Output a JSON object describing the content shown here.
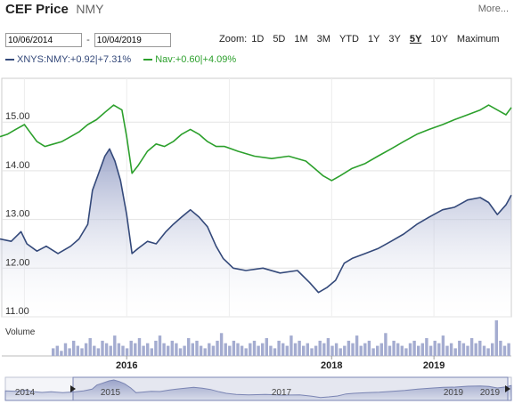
{
  "header": {
    "title": "CEF Price",
    "ticker": "NMY",
    "more_link": "More..."
  },
  "date_range": {
    "from": "10/06/2014",
    "to": "10/04/2019"
  },
  "zoom": {
    "label": "Zoom:",
    "options": [
      "1D",
      "5D",
      "1M",
      "3M",
      "YTD",
      "1Y",
      "3Y",
      "5Y",
      "10Y",
      "Maximum"
    ],
    "active": "5Y"
  },
  "legend": [
    {
      "text": "XNYS:NMY:+0.92|+7.31%",
      "color": "#34497a"
    },
    {
      "text": "Nav:+0.60|+4.09%",
      "color": "#2ca02c"
    }
  ],
  "chart_data": {
    "type": "line",
    "ylim": [
      11.0,
      15.9
    ],
    "y_ticks": [
      "11.00",
      "12.00",
      "13.00",
      "14.00",
      "15.00"
    ],
    "x_range": [
      "2014-10-06",
      "2019-10-04"
    ],
    "x_ticks": [
      "2016",
      "2018",
      "2019"
    ],
    "volume_label": "Volume",
    "navigator_ticks": [
      "2014",
      "2015",
      "2017",
      "2019",
      "2019"
    ],
    "series": [
      {
        "name": "XNYS:NMY",
        "color": "#34497a",
        "points": [
          [
            "2014-10-06",
            12.6
          ],
          [
            "2014-11-15",
            12.55
          ],
          [
            "2014-12-20",
            12.75
          ],
          [
            "2015-01-10",
            12.5
          ],
          [
            "2015-02-15",
            12.35
          ],
          [
            "2015-03-20",
            12.45
          ],
          [
            "2015-05-01",
            12.3
          ],
          [
            "2015-06-15",
            12.45
          ],
          [
            "2015-07-15",
            12.6
          ],
          [
            "2015-08-15",
            12.9
          ],
          [
            "2015-09-01",
            13.6
          ],
          [
            "2015-09-20",
            13.9
          ],
          [
            "2015-10-15",
            14.3
          ],
          [
            "2015-11-01",
            14.45
          ],
          [
            "2015-11-20",
            14.2
          ],
          [
            "2015-12-10",
            13.8
          ],
          [
            "2016-01-01",
            13.1
          ],
          [
            "2016-01-20",
            12.3
          ],
          [
            "2016-02-10",
            12.4
          ],
          [
            "2016-03-15",
            12.55
          ],
          [
            "2016-04-15",
            12.5
          ],
          [
            "2016-05-20",
            12.75
          ],
          [
            "2016-06-15",
            12.9
          ],
          [
            "2016-07-15",
            13.05
          ],
          [
            "2016-08-15",
            13.2
          ],
          [
            "2016-09-15",
            13.05
          ],
          [
            "2016-10-15",
            12.85
          ],
          [
            "2016-11-15",
            12.45
          ],
          [
            "2016-12-10",
            12.2
          ],
          [
            "2017-01-15",
            12.0
          ],
          [
            "2017-03-01",
            11.95
          ],
          [
            "2017-05-01",
            12.0
          ],
          [
            "2017-07-01",
            11.9
          ],
          [
            "2017-09-01",
            11.95
          ],
          [
            "2017-10-15",
            11.7
          ],
          [
            "2017-11-15",
            11.5
          ],
          [
            "2017-12-15",
            11.6
          ],
          [
            "2018-01-15",
            11.75
          ],
          [
            "2018-02-15",
            12.1
          ],
          [
            "2018-03-15",
            12.2
          ],
          [
            "2018-05-01",
            12.3
          ],
          [
            "2018-06-15",
            12.4
          ],
          [
            "2018-08-01",
            12.55
          ],
          [
            "2018-09-15",
            12.7
          ],
          [
            "2018-11-01",
            12.9
          ],
          [
            "2018-12-15",
            13.05
          ],
          [
            "2019-02-01",
            13.2
          ],
          [
            "2019-03-15",
            13.25
          ],
          [
            "2019-05-01",
            13.4
          ],
          [
            "2019-06-15",
            13.45
          ],
          [
            "2019-07-15",
            13.35
          ],
          [
            "2019-08-15",
            13.1
          ],
          [
            "2019-09-15",
            13.3
          ],
          [
            "2019-10-04",
            13.5
          ]
        ]
      },
      {
        "name": "Nav",
        "color": "#2ca02c",
        "points": [
          [
            "2014-10-06",
            14.7
          ],
          [
            "2014-11-01",
            14.75
          ],
          [
            "2014-12-01",
            14.85
          ],
          [
            "2015-01-01",
            14.95
          ],
          [
            "2015-01-20",
            14.8
          ],
          [
            "2015-02-15",
            14.6
          ],
          [
            "2015-03-15",
            14.5
          ],
          [
            "2015-04-15",
            14.55
          ],
          [
            "2015-05-15",
            14.6
          ],
          [
            "2015-06-15",
            14.7
          ],
          [
            "2015-07-15",
            14.8
          ],
          [
            "2015-08-15",
            14.95
          ],
          [
            "2015-09-15",
            15.05
          ],
          [
            "2015-10-15",
            15.2
          ],
          [
            "2015-11-15",
            15.35
          ],
          [
            "2015-12-15",
            15.25
          ],
          [
            "2016-01-01",
            14.7
          ],
          [
            "2016-01-20",
            13.95
          ],
          [
            "2016-02-10",
            14.1
          ],
          [
            "2016-03-15",
            14.4
          ],
          [
            "2016-04-15",
            14.55
          ],
          [
            "2016-05-15",
            14.5
          ],
          [
            "2016-06-15",
            14.6
          ],
          [
            "2016-07-15",
            14.75
          ],
          [
            "2016-08-15",
            14.85
          ],
          [
            "2016-09-15",
            14.75
          ],
          [
            "2016-10-15",
            14.6
          ],
          [
            "2016-11-15",
            14.5
          ],
          [
            "2016-12-15",
            14.5
          ],
          [
            "2017-02-01",
            14.4
          ],
          [
            "2017-04-01",
            14.3
          ],
          [
            "2017-06-01",
            14.25
          ],
          [
            "2017-08-01",
            14.3
          ],
          [
            "2017-10-01",
            14.2
          ],
          [
            "2017-11-01",
            14.05
          ],
          [
            "2017-12-01",
            13.9
          ],
          [
            "2018-01-01",
            13.8
          ],
          [
            "2018-02-01",
            13.9
          ],
          [
            "2018-03-15",
            14.05
          ],
          [
            "2018-05-01",
            14.15
          ],
          [
            "2018-06-15",
            14.3
          ],
          [
            "2018-08-01",
            14.45
          ],
          [
            "2018-09-15",
            14.6
          ],
          [
            "2018-11-01",
            14.75
          ],
          [
            "2018-12-15",
            14.85
          ],
          [
            "2019-02-01",
            14.95
          ],
          [
            "2019-03-15",
            15.05
          ],
          [
            "2019-05-01",
            15.15
          ],
          [
            "2019-06-15",
            15.25
          ],
          [
            "2019-07-15",
            15.35
          ],
          [
            "2019-08-15",
            15.25
          ],
          [
            "2019-09-15",
            15.15
          ],
          [
            "2019-10-04",
            15.3
          ]
        ]
      }
    ],
    "volume": [
      3,
      4,
      2,
      5,
      3,
      6,
      4,
      3,
      5,
      7,
      4,
      3,
      6,
      5,
      4,
      8,
      5,
      4,
      3,
      6,
      5,
      7,
      4,
      5,
      3,
      6,
      8,
      5,
      4,
      6,
      5,
      3,
      4,
      7,
      5,
      6,
      4,
      3,
      5,
      4,
      6,
      9,
      5,
      4,
      6,
      5,
      4,
      3,
      5,
      6,
      4,
      5,
      7,
      4,
      3,
      6,
      5,
      4,
      8,
      5,
      6,
      4,
      5,
      3,
      4,
      6,
      5,
      7,
      4,
      5,
      3,
      4,
      6,
      5,
      8,
      4,
      5,
      6,
      3,
      4,
      5,
      9,
      4,
      6,
      5,
      4,
      3,
      5,
      6,
      4,
      5,
      7,
      4,
      6,
      5,
      8,
      4,
      5,
      3,
      6,
      5,
      4,
      7,
      5,
      6,
      4,
      3,
      5,
      14,
      6,
      4,
      5
    ]
  }
}
